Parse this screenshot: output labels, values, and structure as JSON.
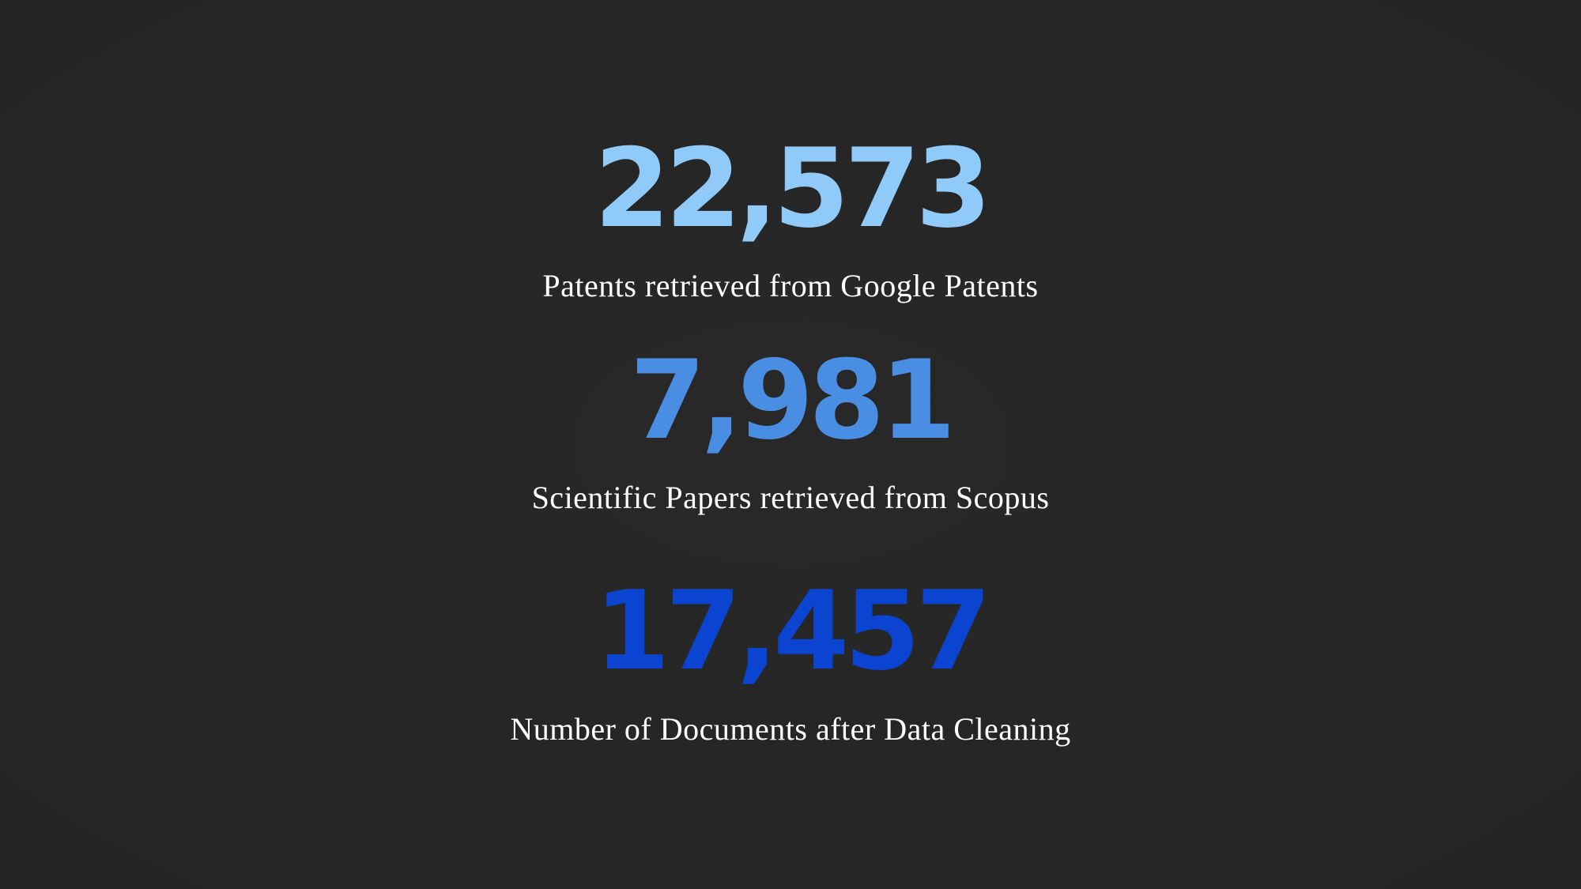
{
  "stats": [
    {
      "value": "22,573",
      "label": "Patents retrieved from Google Patents",
      "color": "#90caf9"
    },
    {
      "value": "7,981",
      "label": "Scientific Papers retrieved from Scopus",
      "color": "#4a8ee4"
    },
    {
      "value": "17,457",
      "label": "Number of Documents after Data Cleaning",
      "color": "#0a44d0"
    }
  ],
  "background_color": "#262626",
  "caption_color": "#ffffff"
}
